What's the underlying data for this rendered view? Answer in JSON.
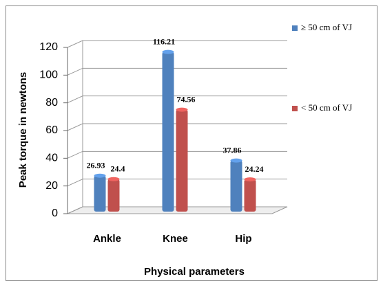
{
  "chart_data": {
    "type": "bar",
    "y_label": "Peak torque  in newtons",
    "x_label": "Physical parameters",
    "categories": [
      "Ankle",
      "Knee",
      "Hip"
    ],
    "series": [
      {
        "name": "≥ 50 cm of VJ",
        "color": "#4f81bd",
        "values": [
          26.93,
          116.21,
          37.86
        ]
      },
      {
        "name": "< 50 cm of VJ",
        "color": "#c0504d",
        "values": [
          24.4,
          74.56,
          24.24
        ]
      }
    ],
    "ylim": [
      0,
      120
    ],
    "yticks": [
      0,
      20,
      40,
      60,
      80,
      100,
      120
    ],
    "grid": true,
    "legend": "right"
  }
}
